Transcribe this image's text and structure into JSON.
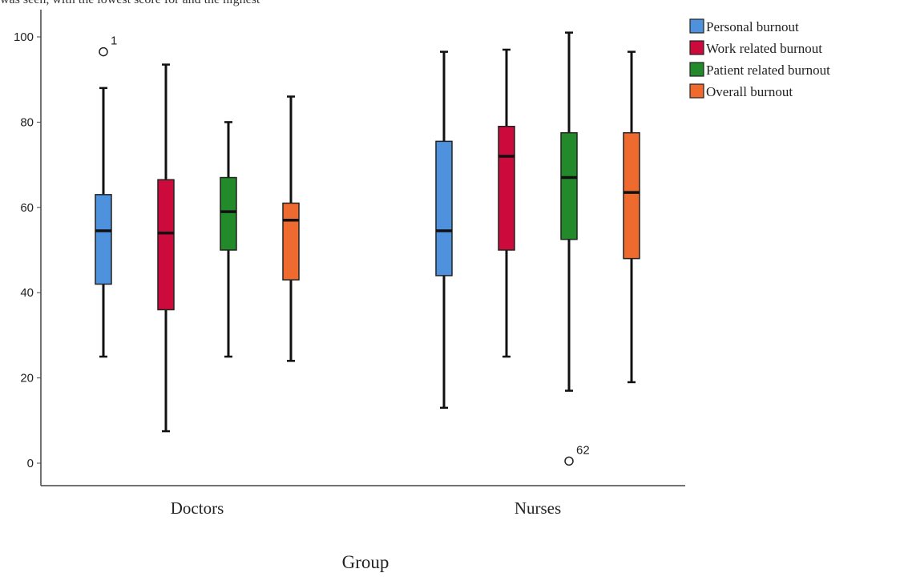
{
  "caption_fragment": "was seen, with the lowest score for and the highest",
  "chart_data": {
    "type": "boxplot",
    "title": "",
    "xlabel": "Group",
    "ylabel": "",
    "ylim": [
      -5,
      105
    ],
    "yticks": [
      0,
      20,
      40,
      60,
      80,
      100
    ],
    "grid": false,
    "legend_position": "top-right",
    "categories": [
      "Doctors",
      "Nurses"
    ],
    "series": [
      {
        "name": "Personal burnout",
        "color": "#4e91dc",
        "boxes": [
          {
            "category": "Doctors",
            "min": 25,
            "q1": 42,
            "median": 54.5,
            "q3": 63,
            "max": 88,
            "outliers": [
              {
                "value": 96.5,
                "label": "1"
              }
            ]
          },
          {
            "category": "Nurses",
            "min": 13,
            "q1": 44,
            "median": 54.5,
            "q3": 75.5,
            "max": 96.5,
            "outliers": []
          }
        ]
      },
      {
        "name": "Work related burnout",
        "color": "#cc0a3c",
        "boxes": [
          {
            "category": "Doctors",
            "min": 7.5,
            "q1": 36,
            "median": 54,
            "q3": 66.5,
            "max": 93.5,
            "outliers": []
          },
          {
            "category": "Nurses",
            "min": 25,
            "q1": 50,
            "median": 72,
            "q3": 79,
            "max": 97,
            "outliers": []
          }
        ]
      },
      {
        "name": "Patient related burnout",
        "color": "#228a2a",
        "boxes": [
          {
            "category": "Doctors",
            "min": 25,
            "q1": 50,
            "median": 59,
            "q3": 67,
            "max": 80,
            "outliers": []
          },
          {
            "category": "Nurses",
            "min": 17,
            "q1": 52.5,
            "median": 67,
            "q3": 77.5,
            "max": 101,
            "outliers": [
              {
                "value": 0.5,
                "label": "62"
              }
            ]
          }
        ]
      },
      {
        "name": "Overall burnout",
        "color": "#ee6a2e",
        "boxes": [
          {
            "category": "Doctors",
            "min": 24,
            "q1": 43,
            "median": 57,
            "q3": 61,
            "max": 86,
            "outliers": []
          },
          {
            "category": "Nurses",
            "min": 19,
            "q1": 48,
            "median": 63.5,
            "q3": 77.5,
            "max": 96.5,
            "outliers": []
          }
        ]
      }
    ]
  }
}
